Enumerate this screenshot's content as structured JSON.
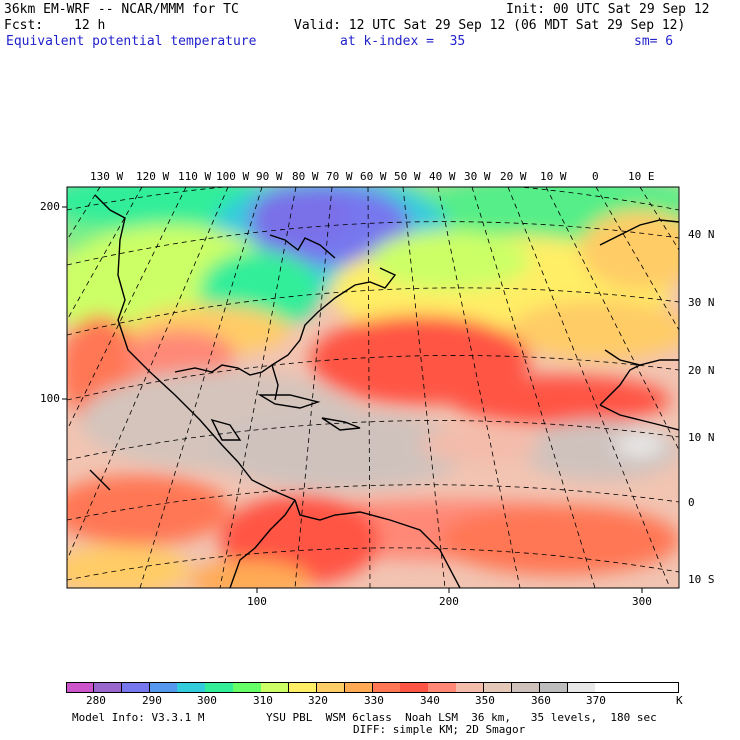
{
  "header": {
    "model": "36km EM-WRF -- NCAR/MMM for TC",
    "init": "Init: 00 UTC Sat 29 Sep 12",
    "fcst_label": "Fcst:",
    "fcst_value": "12 h",
    "valid": "Valid: 12 UTC Sat 29 Sep 12 (06 MDT Sat 29 Sep 12)",
    "field": "Equivalent potential temperature",
    "level": "at k-index =  35",
    "smooth": "sm= 6"
  },
  "map": {
    "top_lon_labels": [
      "130 W",
      "120 W",
      "110 W",
      "100 W",
      "90 W",
      "80 W",
      "70 W",
      "60 W",
      "50 W",
      "40 W",
      "30 W",
      "20 W",
      "10 W",
      "0",
      "10 E"
    ],
    "right_lat_labels": [
      "40 N",
      "30 N",
      "20 N",
      "10 N",
      "0",
      "10 S"
    ],
    "left_grid_labels": [
      "200",
      "100"
    ],
    "bottom_grid_labels": [
      "100",
      "200",
      "300"
    ]
  },
  "colorbar": {
    "ticks": [
      "280",
      "290",
      "300",
      "310",
      "320",
      "330",
      "340",
      "350",
      "360",
      "370"
    ],
    "unit": "K",
    "colors": [
      "#cc55cc",
      "#9966cc",
      "#7777ee",
      "#5599ee",
      "#33ccdd",
      "#33ee99",
      "#66ff66",
      "#ccff66",
      "#ffee66",
      "#ffcc66",
      "#ffaa55",
      "#ff7755",
      "#ff5544",
      "#ff8877",
      "#f4bcaa",
      "#e4c8b8",
      "#cfc2bd",
      "#bdbdbd",
      "#e8e8e8",
      "#ffffff",
      "#ffffff",
      "#ffffff"
    ]
  },
  "footer": {
    "model_info": "Model Info: V3.3.1 M",
    "physics": "YSU PBL  WSM 6class  Noah LSM  36 km,   35 levels,  180 sec",
    "diff": "DIFF: simple KM; 2D Smagor"
  }
}
